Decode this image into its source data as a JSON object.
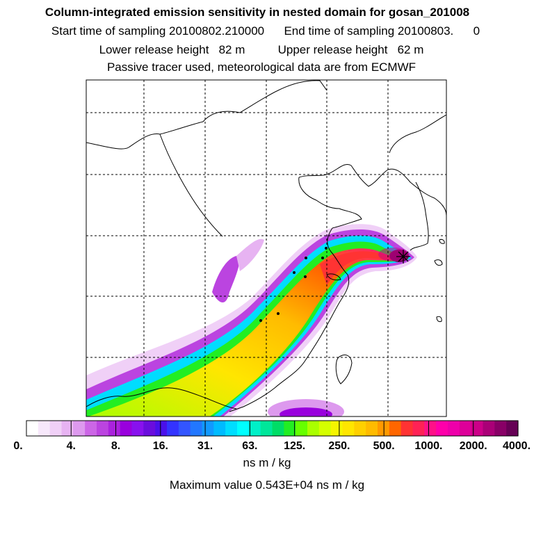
{
  "chart_data": {
    "type": "heatmap",
    "title": "Column-integrated emission sensitivity in nested domain for gosan_201008",
    "subtitle_lines": [
      "Start time of sampling 20100802.210000      End time of sampling 20100803.      0",
      "Lower release height   82 m          Upper release height   62 m",
      "Passive tracer used, meteorological data are from ECMWF"
    ],
    "colorbar": {
      "tick_labels": [
        "0.",
        "4.",
        "8.",
        "16.",
        "31.",
        "63.",
        "125.",
        "250.",
        "500.",
        "1000.",
        "2000.",
        "4000."
      ],
      "colors": [
        "#ffffff",
        "#f7e8fb",
        "#f0d0f7",
        "#e7b3f2",
        "#dd99ee",
        "#cc66e6",
        "#bb44e0",
        "#aa22dd",
        "#9900dd",
        "#8811ee",
        "#6a0ddd",
        "#4a10ea",
        "#3333ff",
        "#3355ff",
        "#2277ff",
        "#1199ff",
        "#00bbff",
        "#00ddff",
        "#00ffff",
        "#00f0c8",
        "#00e69a",
        "#00dd66",
        "#22ee22",
        "#66ff00",
        "#aaff00",
        "#d5ff00",
        "#f5f500",
        "#ffe600",
        "#ffd000",
        "#ffbb00",
        "#ff9900",
        "#ff6600",
        "#ff3333",
        "#ff2255",
        "#ff1188",
        "#ff00aa",
        "#ee00aa",
        "#dd0099",
        "#cc0088",
        "#aa0077",
        "#880066",
        "#660055"
      ],
      "units": "ns m / kg"
    },
    "max_value_text": "Maximum value  0.543E+04 ns m / kg",
    "receptor": "gosan"
  }
}
